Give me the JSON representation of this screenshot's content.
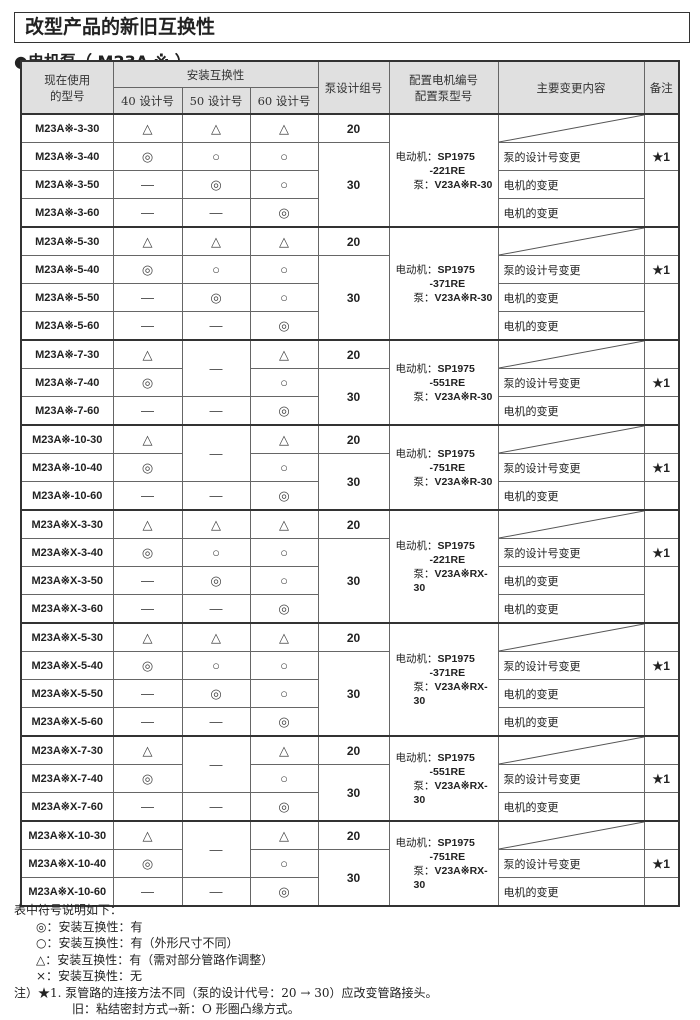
{
  "title": "改型产品的新旧互换性",
  "subtitle": "●电机泵（ M23A ※ ）",
  "header": {
    "model": "现在使用\n的型号",
    "install": "安装互换性",
    "d40": "40 设计号",
    "d50": "50 设计号",
    "d60": "60 设计号",
    "pump_group": "泵设计组号",
    "config": "配置电机编号\n配置泵型号",
    "changes": "主要变更内容",
    "remarks": "备注"
  },
  "groups": [
    {
      "motor_label": "电动机：",
      "motor": "SP1975",
      "motor2": "-221RE",
      "pump_label": "泵：",
      "pump": "V23A※R-30",
      "c50_merged": null,
      "rows": [
        {
          "model": "M23A※-3-30",
          "c40": "△",
          "c50": "△",
          "c60": "△"
        },
        {
          "model": "M23A※-3-40",
          "c40": "◎",
          "c50": "○",
          "c60": "○"
        },
        {
          "model": "M23A※-3-50",
          "c40": "—",
          "c50": "◎",
          "c60": "○"
        },
        {
          "model": "M23A※-3-60",
          "c40": "—",
          "c50": "—",
          "c60": "◎"
        }
      ],
      "groups_no": [
        "20",
        "30"
      ],
      "changes": [
        "",
        "泵的设计号变更",
        "电机的变更",
        "电机的变更"
      ],
      "note": "★1"
    },
    {
      "motor_label": "电动机：",
      "motor": "SP1975",
      "motor2": "-371RE",
      "pump_label": "泵：",
      "pump": "V23A※R-30",
      "c50_merged": null,
      "rows": [
        {
          "model": "M23A※-5-30",
          "c40": "△",
          "c50": "△",
          "c60": "△"
        },
        {
          "model": "M23A※-5-40",
          "c40": "◎",
          "c50": "○",
          "c60": "○"
        },
        {
          "model": "M23A※-5-50",
          "c40": "—",
          "c50": "◎",
          "c60": "○"
        },
        {
          "model": "M23A※-5-60",
          "c40": "—",
          "c50": "—",
          "c60": "◎"
        }
      ],
      "groups_no": [
        "20",
        "30"
      ],
      "changes": [
        "",
        "泵的设计号变更",
        "电机的变更",
        "电机的变更"
      ],
      "note": "★1"
    },
    {
      "motor_label": "电动机：",
      "motor": "SP1975",
      "motor2": "-551RE",
      "pump_label": "泵：",
      "pump": "V23A※R-30",
      "c50_merged": "—",
      "rows": [
        {
          "model": "M23A※-7-30",
          "c40": "△",
          "c60": "△"
        },
        {
          "model": "M23A※-7-40",
          "c40": "◎",
          "c60": "○"
        },
        {
          "model": "M23A※-7-60",
          "c40": "—",
          "c50": "—",
          "c60": "◎"
        }
      ],
      "groups_no": [
        "20",
        "30"
      ],
      "changes": [
        "",
        "泵的设计号变更",
        "电机的变更"
      ],
      "note": "★1"
    },
    {
      "motor_label": "电动机：",
      "motor": "SP1975",
      "motor2": "-751RE",
      "pump_label": "泵：",
      "pump": "V23A※R-30",
      "c50_merged": "—",
      "rows": [
        {
          "model": "M23A※-10-30",
          "c40": "△",
          "c60": "△"
        },
        {
          "model": "M23A※-10-40",
          "c40": "◎",
          "c60": "○"
        },
        {
          "model": "M23A※-10-60",
          "c40": "—",
          "c50": "—",
          "c60": "◎"
        }
      ],
      "groups_no": [
        "20",
        "30"
      ],
      "changes": [
        "",
        "泵的设计号变更",
        "电机的变更"
      ],
      "note": "★1"
    },
    {
      "motor_label": "电动机：",
      "motor": "SP1975",
      "motor2": "-221RE",
      "pump_label": "泵：",
      "pump": "V23A※RX-30",
      "c50_merged": null,
      "rows": [
        {
          "model": "M23A※X-3-30",
          "c40": "△",
          "c50": "△",
          "c60": "△"
        },
        {
          "model": "M23A※X-3-40",
          "c40": "◎",
          "c50": "○",
          "c60": "○"
        },
        {
          "model": "M23A※X-3-50",
          "c40": "—",
          "c50": "◎",
          "c60": "○"
        },
        {
          "model": "M23A※X-3-60",
          "c40": "—",
          "c50": "—",
          "c60": "◎"
        }
      ],
      "groups_no": [
        "20",
        "30"
      ],
      "changes": [
        "",
        "泵的设计号变更",
        "电机的变更",
        "电机的变更"
      ],
      "note": "★1"
    },
    {
      "motor_label": "电动机：",
      "motor": "SP1975",
      "motor2": "-371RE",
      "pump_label": "泵：",
      "pump": "V23A※RX-30",
      "c50_merged": null,
      "rows": [
        {
          "model": "M23A※X-5-30",
          "c40": "△",
          "c50": "△",
          "c60": "△"
        },
        {
          "model": "M23A※X-5-40",
          "c40": "◎",
          "c50": "○",
          "c60": "○"
        },
        {
          "model": "M23A※X-5-50",
          "c40": "—",
          "c50": "◎",
          "c60": "○"
        },
        {
          "model": "M23A※X-5-60",
          "c40": "—",
          "c50": "—",
          "c60": "◎"
        }
      ],
      "groups_no": [
        "20",
        "30"
      ],
      "changes": [
        "",
        "泵的设计号变更",
        "电机的变更",
        "电机的变更"
      ],
      "note": "★1"
    },
    {
      "motor_label": "电动机：",
      "motor": "SP1975",
      "motor2": "-551RE",
      "pump_label": "泵：",
      "pump": "V23A※RX-30",
      "c50_merged": "—",
      "rows": [
        {
          "model": "M23A※X-7-30",
          "c40": "△",
          "c60": "△"
        },
        {
          "model": "M23A※X-7-40",
          "c40": "◎",
          "c60": "○"
        },
        {
          "model": "M23A※X-7-60",
          "c40": "—",
          "c50": "—",
          "c60": "◎"
        }
      ],
      "groups_no": [
        "20",
        "30"
      ],
      "changes": [
        "",
        "泵的设计号变更",
        "电机的变更"
      ],
      "note": "★1"
    },
    {
      "motor_label": "电动机：",
      "motor": "SP1975",
      "motor2": "-751RE",
      "pump_label": "泵：",
      "pump": "V23A※RX-30",
      "c50_merged": "—",
      "rows": [
        {
          "model": "M23A※X-10-30",
          "c40": "△",
          "c60": "△"
        },
        {
          "model": "M23A※X-10-40",
          "c40": "◎",
          "c60": "○"
        },
        {
          "model": "M23A※X-10-60",
          "c40": "—",
          "c50": "—",
          "c60": "◎"
        }
      ],
      "groups_no": [
        "20",
        "30"
      ],
      "changes": [
        "",
        "泵的设计号变更",
        "电机的变更"
      ],
      "note": "★1"
    }
  ],
  "legend": {
    "heading": "表中符号说明如下：",
    "items": [
      "◎：安装互换性：有",
      "○：安装互换性：有（外形尺寸不同）",
      "△：安装互换性：有（需对部分管路作调整）",
      "×：安装互换性：无"
    ],
    "note1": "注）★1. 泵管路的连接方法不同（泵的设计代号：20 → 30）应改变管路接头。",
    "note2": "旧：粘结密封方式→新：O 形圈凸缘方式。"
  }
}
